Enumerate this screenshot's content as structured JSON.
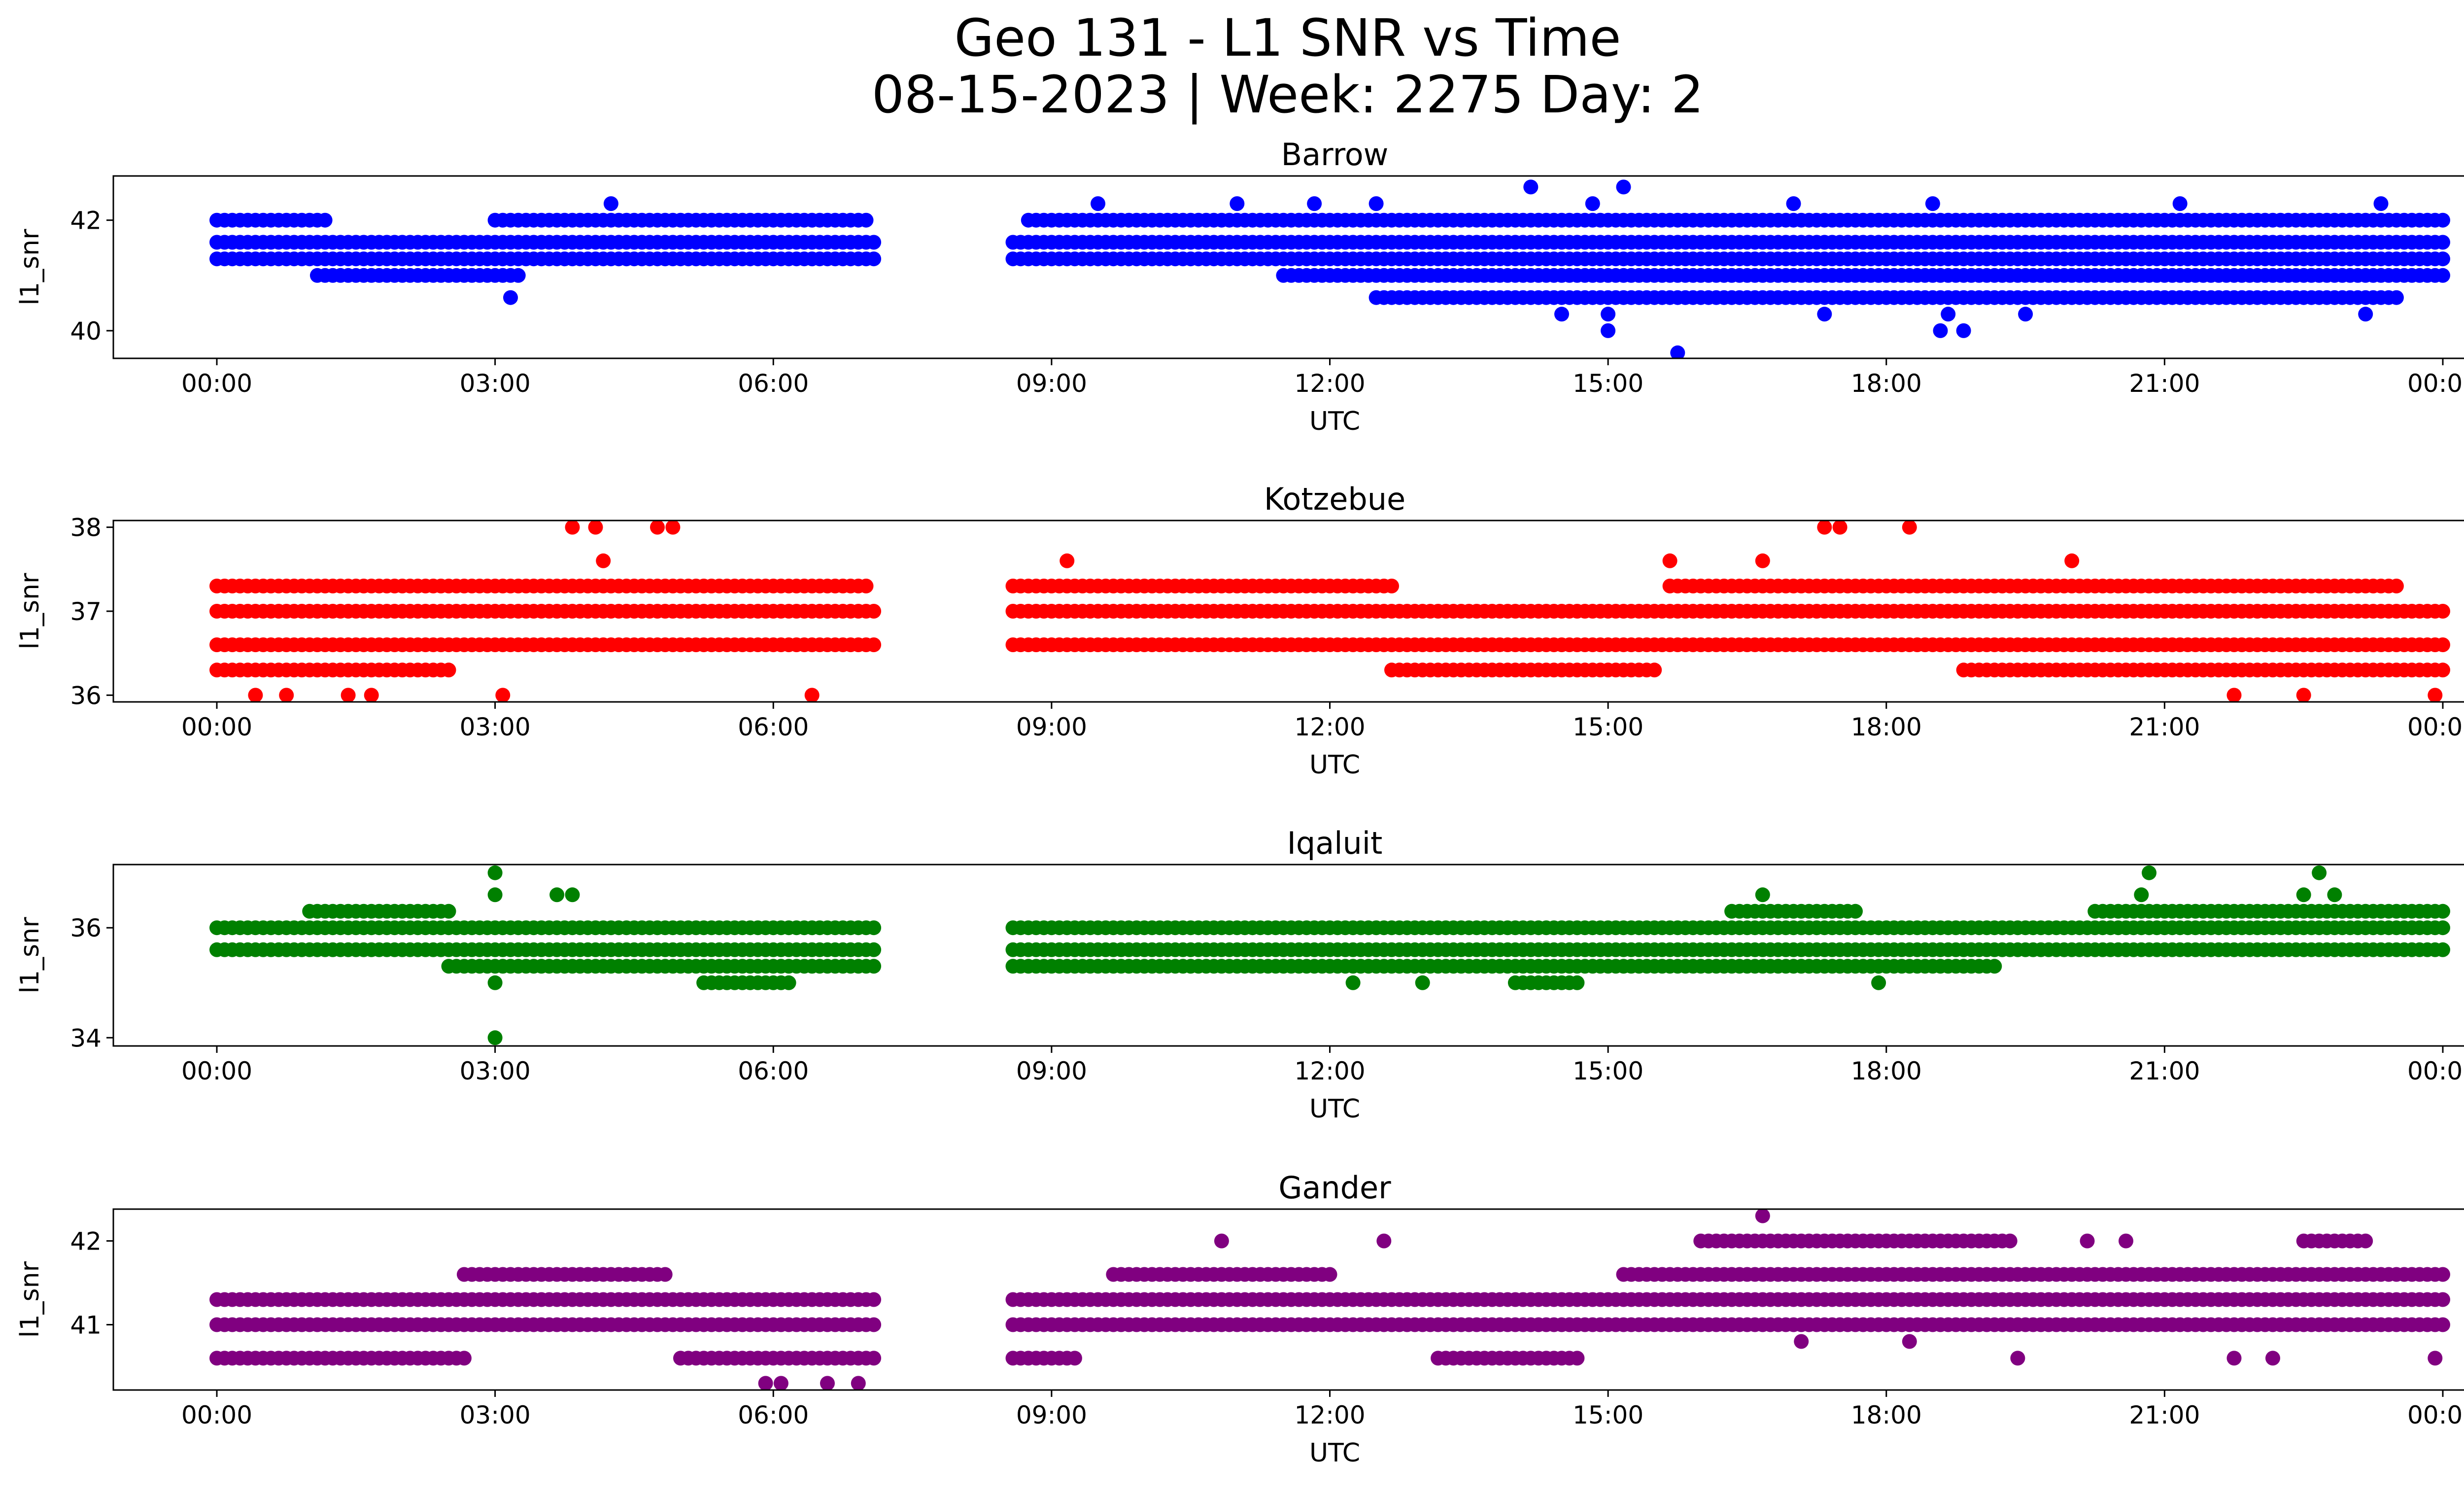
{
  "figure": {
    "title_line1": "Geo 131 - L1 SNR vs Time",
    "title_line2": "08-15-2023 | Week: 2275 Day: 2"
  },
  "chart_data": [
    {
      "type": "scatter",
      "title": "Barrow",
      "xlabel": "UTC",
      "ylabel": "l1_snr",
      "color": "#0000ff",
      "xlim": [
        "2023-08-14T23:02",
        "2023-08-16T00:58"
      ],
      "ylim": [
        39.5,
        42.8
      ],
      "yticks": [
        40,
        42
      ],
      "xticks": [
        "00:00",
        "03:00",
        "06:00",
        "09:00",
        "12:00",
        "15:00",
        "18:00",
        "21:00",
        "00:00"
      ],
      "levels": [
        {
          "y": 41.6,
          "ranges": [
            [
              "00:00",
              "07:05"
            ],
            [
              "08:35",
              "24:00"
            ]
          ]
        },
        {
          "y": 41.3,
          "ranges": [
            [
              "00:00",
              "07:05"
            ],
            [
              "08:35",
              "24:00"
            ]
          ]
        },
        {
          "y": 42.0,
          "ranges": [
            [
              "00:00",
              "01:10"
            ],
            [
              "03:00",
              "07:00"
            ],
            [
              "08:45",
              "24:00"
            ]
          ]
        },
        {
          "y": 41.0,
          "ranges": [
            [
              "01:05",
              "03:15"
            ],
            [
              "11:30",
              "24:00"
            ]
          ]
        },
        {
          "y": 40.6,
          "ranges": [
            [
              "12:30",
              "23:30"
            ]
          ]
        }
      ],
      "extra_points": [
        [
          "04:15",
          42.3
        ],
        [
          "03:10",
          40.6
        ],
        [
          "09:30",
          42.3
        ],
        [
          "11:00",
          42.3
        ],
        [
          "11:50",
          42.3
        ],
        [
          "12:30",
          42.3
        ],
        [
          "14:10",
          42.6
        ],
        [
          "15:10",
          42.6
        ],
        [
          "14:50",
          42.3
        ],
        [
          "15:00",
          40.0
        ],
        [
          "15:00",
          40.3
        ],
        [
          "15:45",
          39.6
        ],
        [
          "14:30",
          40.3
        ],
        [
          "17:20",
          40.3
        ],
        [
          "18:35",
          40.0
        ],
        [
          "18:50",
          40.0
        ],
        [
          "18:40",
          40.3
        ],
        [
          "19:30",
          40.3
        ],
        [
          "17:00",
          42.3
        ],
        [
          "18:30",
          42.3
        ],
        [
          "21:10",
          42.3
        ],
        [
          "23:10",
          40.3
        ],
        [
          "23:20",
          42.3
        ]
      ]
    },
    {
      "type": "scatter",
      "title": "Kotzebue",
      "xlabel": "UTC",
      "ylabel": "l1_snr",
      "color": "#ff0000",
      "xlim": [
        "2023-08-14T23:02",
        "2023-08-16T00:58"
      ],
      "ylim": [
        35.92,
        38.08
      ],
      "yticks": [
        36,
        37,
        38
      ],
      "xticks": [
        "00:00",
        "03:00",
        "06:00",
        "09:00",
        "12:00",
        "15:00",
        "18:00",
        "21:00",
        "00:00"
      ],
      "levels": [
        {
          "y": 37.0,
          "ranges": [
            [
              "00:00",
              "07:05"
            ],
            [
              "08:35",
              "24:00"
            ]
          ]
        },
        {
          "y": 36.6,
          "ranges": [
            [
              "00:00",
              "07:05"
            ],
            [
              "08:35",
              "24:00"
            ]
          ]
        },
        {
          "y": 37.3,
          "ranges": [
            [
              "00:00",
              "07:00"
            ],
            [
              "08:35",
              "12:40"
            ],
            [
              "15:40",
              "23:30"
            ]
          ]
        },
        {
          "y": 36.3,
          "ranges": [
            [
              "00:00",
              "02:30"
            ],
            [
              "12:40",
              "15:30"
            ],
            [
              "18:50",
              "24:00"
            ]
          ]
        }
      ],
      "extra_points": [
        [
          "03:50",
          38.0
        ],
        [
          "04:05",
          38.0
        ],
        [
          "04:45",
          38.0
        ],
        [
          "04:55",
          38.0
        ],
        [
          "17:20",
          38.0
        ],
        [
          "17:30",
          38.0
        ],
        [
          "18:15",
          38.0
        ],
        [
          "04:10",
          37.6
        ],
        [
          "15:40",
          37.6
        ],
        [
          "16:40",
          37.6
        ],
        [
          "20:00",
          37.6
        ],
        [
          "09:10",
          37.6
        ],
        [
          "00:25",
          36.0
        ],
        [
          "00:45",
          36.0
        ],
        [
          "01:25",
          36.0
        ],
        [
          "01:40",
          36.0
        ],
        [
          "03:05",
          36.0
        ],
        [
          "06:25",
          36.0
        ],
        [
          "21:45",
          36.0
        ],
        [
          "22:30",
          36.0
        ],
        [
          "23:55",
          36.0
        ]
      ]
    },
    {
      "type": "scatter",
      "title": "Iqaluit",
      "xlabel": "UTC",
      "ylabel": "l1_snr",
      "color": "#008000",
      "xlim": [
        "2023-08-14T23:02",
        "2023-08-16T00:58"
      ],
      "ylim": [
        33.85,
        37.15
      ],
      "yticks": [
        34,
        36
      ],
      "xticks": [
        "00:00",
        "03:00",
        "06:00",
        "09:00",
        "12:00",
        "15:00",
        "18:00",
        "21:00",
        "00:00"
      ],
      "levels": [
        {
          "y": 36.0,
          "ranges": [
            [
              "00:00",
              "07:05"
            ],
            [
              "08:35",
              "24:00"
            ]
          ]
        },
        {
          "y": 35.6,
          "ranges": [
            [
              "00:00",
              "07:05"
            ],
            [
              "08:35",
              "24:00"
            ]
          ]
        },
        {
          "y": 35.3,
          "ranges": [
            [
              "02:30",
              "07:05"
            ],
            [
              "08:35",
              "19:10"
            ]
          ]
        },
        {
          "y": 36.3,
          "ranges": [
            [
              "01:00",
              "02:30"
            ],
            [
              "16:20",
              "17:40"
            ],
            [
              "20:15",
              "24:00"
            ]
          ]
        },
        {
          "y": 35.0,
          "ranges": [
            [
              "05:15",
              "06:10"
            ],
            [
              "14:00",
              "14:40"
            ]
          ]
        }
      ],
      "extra_points": [
        [
          "03:00",
          37.0
        ],
        [
          "03:00",
          36.6
        ],
        [
          "03:00",
          35.0
        ],
        [
          "03:00",
          34.0
        ],
        [
          "03:40",
          36.6
        ],
        [
          "03:50",
          36.6
        ],
        [
          "16:40",
          36.6
        ],
        [
          "20:50",
          37.0
        ],
        [
          "20:45",
          36.6
        ],
        [
          "22:40",
          37.0
        ],
        [
          "22:30",
          36.6
        ],
        [
          "22:50",
          36.6
        ],
        [
          "17:55",
          35.0
        ],
        [
          "13:00",
          35.0
        ],
        [
          "12:15",
          35.0
        ]
      ]
    },
    {
      "type": "scatter",
      "title": "Gander",
      "xlabel": "UTC",
      "ylabel": "l1_snr",
      "color": "#800080",
      "xlim": [
        "2023-08-14T23:02",
        "2023-08-16T00:58"
      ],
      "ylim": [
        40.22,
        42.38
      ],
      "yticks": [
        41,
        42
      ],
      "xticks": [
        "00:00",
        "03:00",
        "06:00",
        "09:00",
        "12:00",
        "15:00",
        "18:00",
        "21:00",
        "00:00"
      ],
      "levels": [
        {
          "y": 41.0,
          "ranges": [
            [
              "00:00",
              "07:05"
            ],
            [
              "08:35",
              "24:00"
            ]
          ]
        },
        {
          "y": 41.3,
          "ranges": [
            [
              "00:00",
              "07:05"
            ],
            [
              "08:35",
              "24:00"
            ]
          ]
        },
        {
          "y": 40.6,
          "ranges": [
            [
              "00:00",
              "02:40"
            ],
            [
              "05:00",
              "07:05"
            ],
            [
              "08:35",
              "09:15"
            ],
            [
              "13:10",
              "14:40"
            ]
          ]
        },
        {
          "y": 41.6,
          "ranges": [
            [
              "02:40",
              "04:50"
            ],
            [
              "09:40",
              "12:00"
            ],
            [
              "15:10",
              "24:00"
            ]
          ]
        },
        {
          "y": 42.0,
          "ranges": [
            [
              "16:00",
              "19:20"
            ],
            [
              "22:30",
              "23:10"
            ]
          ]
        }
      ],
      "extra_points": [
        [
          "16:40",
          42.3
        ],
        [
          "05:55",
          40.3
        ],
        [
          "06:05",
          40.3
        ],
        [
          "06:35",
          40.3
        ],
        [
          "06:55",
          40.3
        ],
        [
          "10:50",
          42.0
        ],
        [
          "12:35",
          42.0
        ],
        [
          "20:10",
          42.0
        ],
        [
          "20:35",
          42.0
        ],
        [
          "21:45",
          40.6
        ],
        [
          "22:10",
          40.6
        ],
        [
          "23:55",
          40.6
        ],
        [
          "19:25",
          40.6
        ],
        [
          "17:05",
          40.8
        ],
        [
          "18:15",
          40.8
        ]
      ]
    }
  ]
}
